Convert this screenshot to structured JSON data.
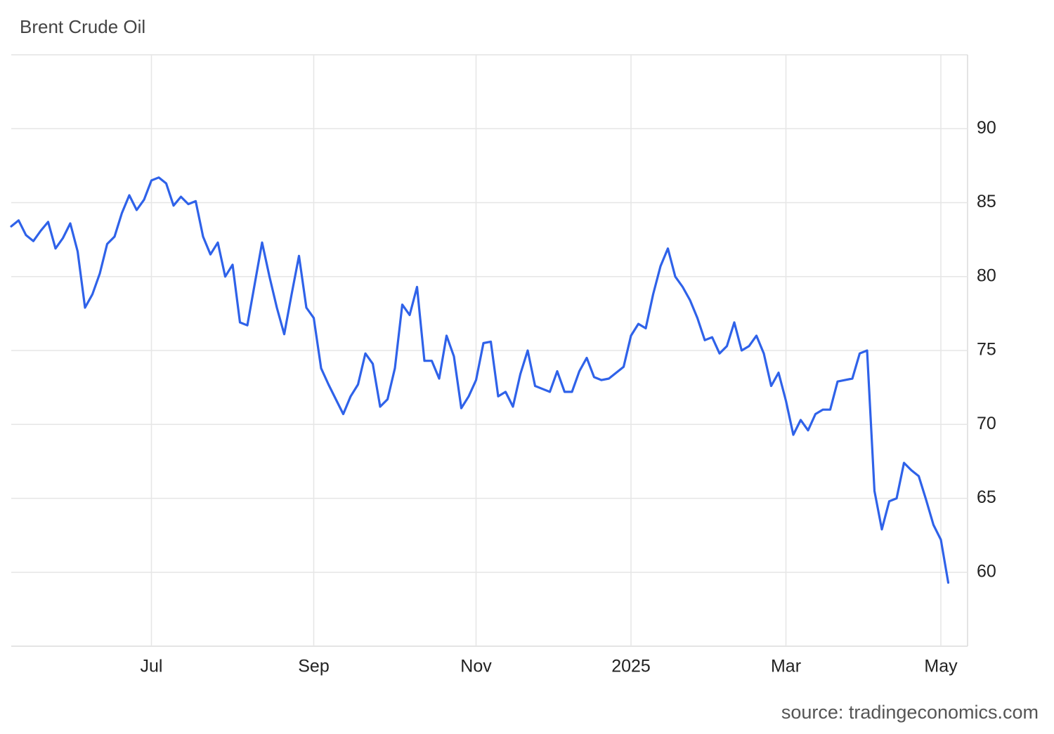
{
  "chart_data": {
    "type": "line",
    "title": "Brent Crude Oil",
    "source": "source: tradingeconomics.com",
    "color": "#2f62e9",
    "grid": true,
    "ylim": [
      55,
      95
    ],
    "yticks": [
      60,
      65,
      70,
      75,
      80,
      85,
      90
    ],
    "categories": [
      null,
      null,
      null,
      null,
      null,
      null,
      null,
      null,
      null,
      null,
      null,
      null,
      null,
      null,
      null,
      null,
      null,
      null,
      null,
      "Jul",
      null,
      null,
      null,
      null,
      null,
      null,
      null,
      null,
      null,
      null,
      null,
      null,
      null,
      null,
      null,
      null,
      null,
      null,
      null,
      null,
      null,
      "Sep",
      null,
      null,
      null,
      null,
      null,
      null,
      null,
      null,
      null,
      null,
      null,
      null,
      null,
      null,
      null,
      null,
      null,
      null,
      null,
      null,
      null,
      "Nov",
      null,
      null,
      null,
      null,
      null,
      null,
      null,
      null,
      null,
      null,
      null,
      null,
      null,
      null,
      null,
      null,
      null,
      null,
      null,
      null,
      "2025",
      null,
      null,
      null,
      null,
      null,
      null,
      null,
      null,
      null,
      null,
      null,
      null,
      null,
      null,
      null,
      null,
      null,
      null,
      null,
      null,
      "Mar",
      null,
      null,
      null,
      null,
      null,
      null,
      null,
      null,
      null,
      null,
      null,
      null,
      null,
      null,
      null,
      null,
      null,
      null,
      null,
      null,
      "May",
      null
    ],
    "values": [
      83.4,
      83.8,
      82.8,
      82.4,
      83.1,
      83.7,
      81.9,
      82.6,
      83.6,
      81.7,
      77.9,
      78.8,
      80.2,
      82.2,
      82.7,
      84.3,
      85.5,
      84.5,
      85.2,
      86.5,
      86.7,
      86.3,
      84.8,
      85.4,
      84.9,
      85.1,
      82.7,
      81.5,
      82.3,
      80.0,
      80.8,
      76.9,
      76.7,
      79.5,
      82.3,
      80.0,
      77.9,
      76.1,
      78.8,
      81.4,
      77.9,
      77.2,
      73.8,
      72.7,
      71.7,
      70.7,
      71.9,
      72.7,
      74.8,
      74.1,
      71.2,
      71.7,
      73.8,
      78.1,
      77.4,
      79.3,
      74.3,
      74.3,
      73.1,
      76.0,
      74.6,
      71.1,
      71.9,
      73.0,
      75.5,
      75.6,
      71.9,
      72.2,
      71.2,
      73.4,
      75.0,
      72.6,
      72.4,
      72.2,
      73.6,
      72.2,
      72.2,
      73.6,
      74.5,
      73.2,
      73.0,
      73.1,
      73.5,
      73.9,
      76.0,
      76.8,
      76.5,
      78.8,
      80.7,
      81.9,
      80.0,
      79.3,
      78.4,
      77.2,
      75.7,
      75.9,
      74.8,
      75.3,
      76.9,
      75.0,
      75.3,
      76.0,
      74.8,
      72.6,
      73.5,
      71.6,
      69.3,
      70.3,
      69.6,
      70.7,
      71.0,
      71.0,
      72.9,
      73.0,
      73.1,
      74.8,
      75.0,
      65.5,
      62.9,
      64.8,
      65.0,
      67.4,
      66.9,
      66.5,
      64.9,
      63.2,
      62.2,
      59.3
    ]
  }
}
